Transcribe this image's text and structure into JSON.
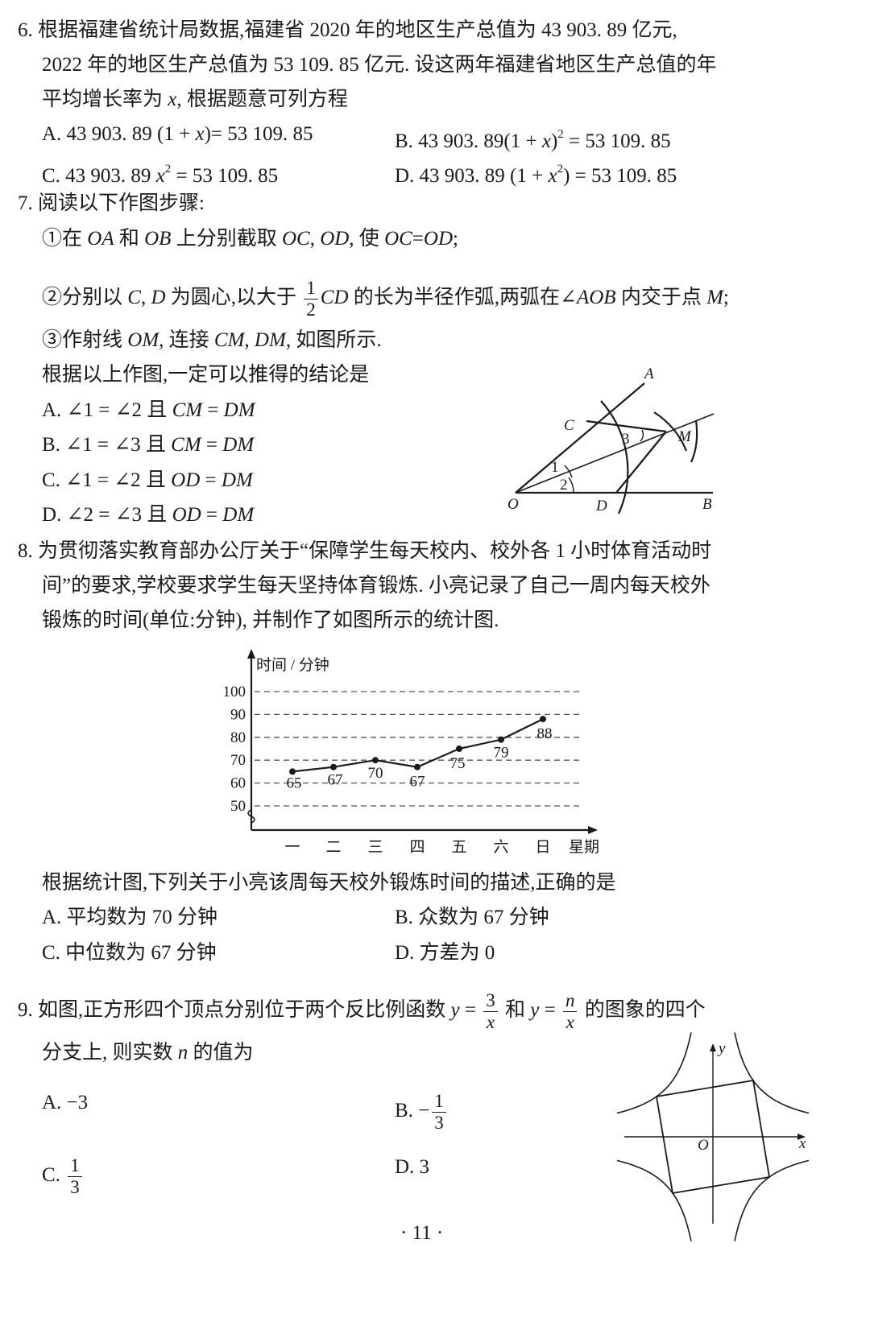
{
  "lines": [
    {
      "segs": [
        {
          "t": "6. 根据福建省统计局数据,福建省 2020 年的地区生产总值为 43 903. 89 亿元,"
        }
      ]
    },
    {
      "segs": [
        {
          "t": "2022 年的地区生产总值为 53 109. 85 亿元. 设这两年福建省地区生产总值的年"
        }
      ]
    },
    {
      "segs": [
        {
          "t": "平均增长率为 "
        },
        {
          "t": "x",
          "i": true
        },
        {
          "t": ", 根据题意可列方程"
        }
      ]
    },
    {
      "segs": [
        {
          "t": "A. 43 903. 89 (1 + "
        },
        {
          "t": "x",
          "i": true
        },
        {
          "t": ")= 53 109. 85"
        }
      ]
    },
    {
      "segs": [
        {
          "t": "B. 43 903. 89(1 + "
        },
        {
          "t": "x",
          "i": true
        },
        {
          "t": ")"
        },
        {
          "t": "2",
          "sup": true
        },
        {
          "t": " = 53 109. 85"
        }
      ]
    },
    {
      "segs": [
        {
          "t": "C. 43 903. 89 "
        },
        {
          "t": "x",
          "i": true
        },
        {
          "t": "2",
          "sup": true
        },
        {
          "t": " = 53 109. 85"
        }
      ]
    },
    {
      "segs": [
        {
          "t": "D. 43 903. 89 (1 + "
        },
        {
          "t": "x",
          "i": true
        },
        {
          "t": "2",
          "sup": true
        },
        {
          "t": ") = 53 109. 85"
        }
      ]
    },
    {
      "segs": [
        {
          "t": "7. 阅读以下作图步骤:"
        }
      ]
    },
    {
      "segs": [
        {
          "t": "①在 "
        },
        {
          "t": "OA",
          "i": true
        },
        {
          "t": " 和 "
        },
        {
          "t": "OB",
          "i": true
        },
        {
          "t": " 上分别截取 "
        },
        {
          "t": "OC",
          "i": true
        },
        {
          "t": ", "
        },
        {
          "t": "OD",
          "i": true
        },
        {
          "t": ", 使 "
        },
        {
          "t": "OC",
          "i": true
        },
        {
          "t": "="
        },
        {
          "t": "OD",
          "i": true
        },
        {
          "t": ";"
        }
      ]
    },
    {
      "segs": [
        {
          "t": "②分别以 "
        },
        {
          "t": "C",
          "i": true
        },
        {
          "t": ", "
        },
        {
          "t": "D",
          "i": true
        },
        {
          "t": " 为圆心,以大于 "
        },
        {
          "num": "1",
          "den": "2"
        },
        {
          "t": "CD",
          "i": true
        },
        {
          "t": " 的长为半径作弧,两弧在∠"
        },
        {
          "t": "AOB",
          "i": true
        },
        {
          "t": " 内交于点 "
        },
        {
          "t": "M",
          "i": true
        },
        {
          "t": ";"
        }
      ]
    },
    {
      "segs": [
        {
          "t": "③作射线 "
        },
        {
          "t": "OM",
          "i": true
        },
        {
          "t": ", 连接 "
        },
        {
          "t": "CM",
          "i": true
        },
        {
          "t": ", "
        },
        {
          "t": "DM",
          "i": true
        },
        {
          "t": ", 如图所示."
        }
      ]
    },
    {
      "segs": [
        {
          "t": "根据以上作图,一定可以推得的结论是"
        }
      ]
    },
    {
      "segs": [
        {
          "t": "A. ∠1 = ∠2 且 "
        },
        {
          "t": "CM",
          "i": true
        },
        {
          "t": " = "
        },
        {
          "t": "DM",
          "i": true
        }
      ]
    },
    {
      "segs": [
        {
          "t": "B. ∠1 = ∠3 且 "
        },
        {
          "t": "CM",
          "i": true
        },
        {
          "t": " = "
        },
        {
          "t": "DM",
          "i": true
        }
      ]
    },
    {
      "segs": [
        {
          "t": "C. ∠1 = ∠2 且 "
        },
        {
          "t": "OD",
          "i": true
        },
        {
          "t": " = "
        },
        {
          "t": "DM",
          "i": true
        }
      ]
    },
    {
      "segs": [
        {
          "t": "D. ∠2 = ∠3 且 "
        },
        {
          "t": "OD",
          "i": true
        },
        {
          "t": " = "
        },
        {
          "t": "DM",
          "i": true
        }
      ]
    },
    {
      "segs": [
        {
          "t": "8. 为贯彻落实教育部办公厅关于“保障学生每天校内、校外各 1 小时体育活动时"
        }
      ]
    },
    {
      "segs": [
        {
          "t": "间”的要求,学校要求学生每天坚持体育锻炼. 小亮记录了自己一周内每天校外"
        }
      ]
    },
    {
      "segs": [
        {
          "t": "锻炼的时间(单位:分钟), 并制作了如图所示的统计图."
        }
      ]
    },
    {
      "segs": [
        {
          "t": "根据统计图,下列关于小亮该周每天校外锻炼时间的描述,正确的是"
        }
      ]
    },
    {
      "segs": [
        {
          "t": "A. 平均数为 70 分钟"
        }
      ]
    },
    {
      "segs": [
        {
          "t": "B. 众数为 67 分钟"
        }
      ]
    },
    {
      "segs": [
        {
          "t": "C. 中位数为 67 分钟"
        }
      ]
    },
    {
      "segs": [
        {
          "t": "D. 方差为 0"
        }
      ]
    },
    {
      "segs": [
        {
          "t": "9. 如图,正方形四个顶点分别位于两个反比例函数 "
        },
        {
          "t": "y",
          "i": true
        },
        {
          "t": " = "
        },
        {
          "num": "3",
          "den": "x",
          "deni": true
        },
        {
          "t": " 和 "
        },
        {
          "t": "y",
          "i": true
        },
        {
          "t": " = "
        },
        {
          "num": "n",
          "den": "x",
          "numi": true,
          "deni": true
        },
        {
          "t": " 的图象的四个"
        }
      ]
    },
    {
      "segs": [
        {
          "t": "分支上, 则实数 "
        },
        {
          "t": "n",
          "i": true
        },
        {
          "t": " 的值为"
        }
      ]
    },
    {
      "segs": [
        {
          "t": "A. −3"
        }
      ]
    },
    {
      "segs": [
        {
          "t": "B. −"
        },
        {
          "num": "1",
          "den": "3"
        }
      ]
    },
    {
      "segs": [
        {
          "t": "C. "
        },
        {
          "num": "1",
          "den": "3"
        }
      ]
    },
    {
      "segs": [
        {
          "t": "D. 3"
        }
      ]
    },
    {
      "segs": [
        {
          "t": "· 11 ·"
        }
      ]
    }
  ],
  "figure7": {
    "labels": {
      "A": "A",
      "B": "B",
      "C": "C",
      "D": "D",
      "O": "O",
      "M": "M",
      "a1": "1",
      "a2": "2",
      "a3": "3"
    }
  },
  "figure9": {
    "labels": {
      "x": "x",
      "y": "y",
      "O": "O"
    }
  },
  "chart_data": {
    "type": "line",
    "ylabel": "时间 / 分钟",
    "xlabel": "星期",
    "categories": [
      "一",
      "二",
      "三",
      "四",
      "五",
      "六",
      "日"
    ],
    "values": [
      65,
      67,
      70,
      67,
      75,
      79,
      88
    ],
    "data_labels": [
      "65",
      "67",
      "70",
      "67",
      "75",
      "79",
      "88"
    ],
    "yticks": [
      50,
      60,
      70,
      80,
      90,
      100
    ],
    "ylim": [
      50,
      100
    ],
    "grid": "dashed horizontal",
    "axis_break": true
  }
}
